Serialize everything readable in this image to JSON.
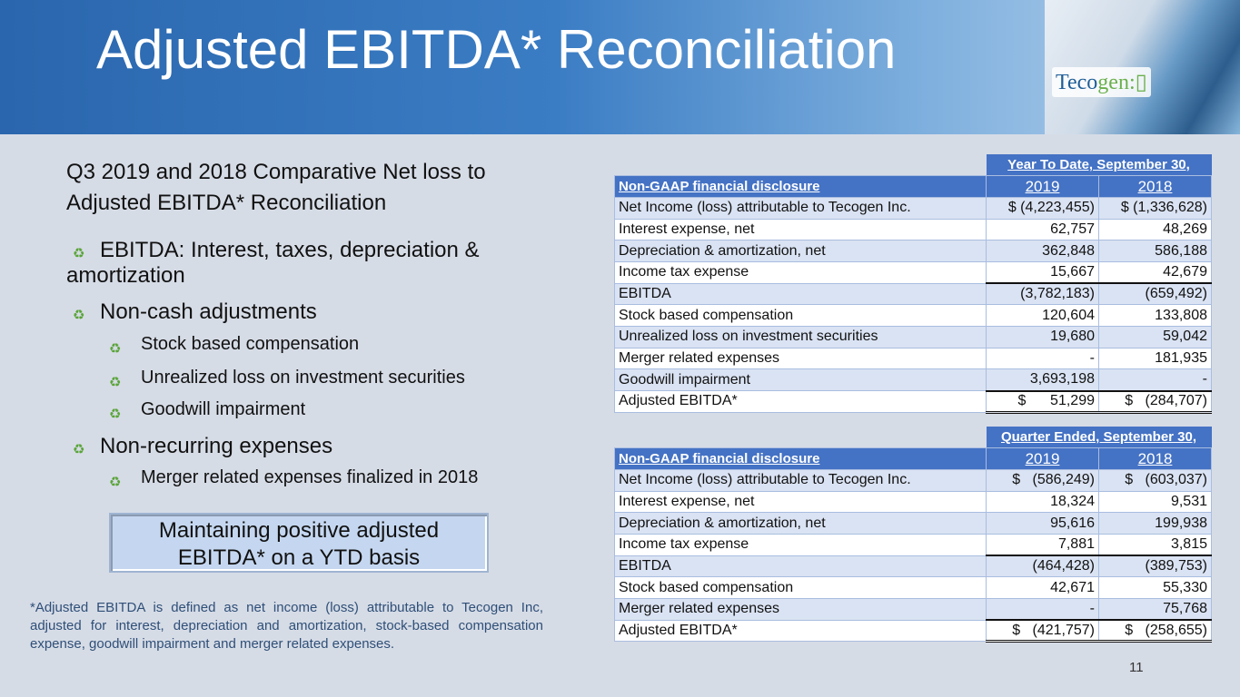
{
  "title": "Adjusted EBITDA* Reconciliation",
  "logo": {
    "text_a": "Teco",
    "text_b": "gen",
    "brand_color": "#1f5e97",
    "accent": "#6ab04c"
  },
  "left": {
    "heading_1": "Q3 2019 and 2018 Comparative Net loss to",
    "heading_2": "Adjusted EBITDA* Reconciliation",
    "bullets": [
      {
        "level": 1,
        "line1": "EBITDA: Interest, taxes, depreciation &",
        "line2": "amortization"
      },
      {
        "level": 1,
        "line1": "Non-cash adjustments"
      },
      {
        "level": 2,
        "line1": "Stock based compensation"
      },
      {
        "level": 2,
        "line1": "Unrealized loss on investment securities"
      },
      {
        "level": 2,
        "line1": "Goodwill impairment"
      },
      {
        "level": 1,
        "line1": "Non-recurring expenses"
      },
      {
        "level": 2,
        "line1": "Merger related expenses finalized in 2018"
      }
    ],
    "bullet_icon": "leaf-plug-icon",
    "callout_1": "Maintaining positive adjusted",
    "callout_2": "EBITDA* on a YTD basis",
    "footnote": "*Adjusted EBITDA is defined as net income (loss) attributable to Tecogen Inc, adjusted for interest, depreciation and amortization, stock-based compensation expense, goodwill impairment and merger related expenses."
  },
  "tables": [
    {
      "period": "Year To Date, September 30,",
      "label_header": "Non-GAAP financial disclosure",
      "years": [
        "2019",
        "2018"
      ],
      "rows": [
        [
          "Net Income (loss) attributable to Tecogen Inc.",
          "$ (4,223,455)",
          "$ (1,336,628)"
        ],
        [
          "Interest expense, net",
          "62,757",
          "48,269"
        ],
        [
          "Depreciation & amortization, net",
          "362,848",
          "586,188"
        ],
        [
          "Income tax expense",
          "15,667",
          "42,679"
        ],
        [
          "EBITDA",
          "(3,782,183)",
          "(659,492)"
        ],
        [
          "Stock based compensation",
          "120,604",
          "133,808"
        ],
        [
          "Unrealized loss on investment securities",
          "19,680",
          "59,042"
        ],
        [
          "Merger related expenses",
          "-",
          "181,935"
        ],
        [
          "Goodwill impairment",
          "3,693,198",
          "-"
        ],
        [
          "Adjusted EBITDA*",
          "$      51,299",
          "$   (284,707)"
        ]
      ],
      "shade": [
        "s",
        "w",
        "s",
        "w",
        "s",
        "w",
        "s",
        "w",
        "s",
        "w"
      ],
      "subtotal_before": [
        3,
        8
      ]
    },
    {
      "period": "Quarter Ended, September 30,",
      "label_header": "Non-GAAP financial disclosure",
      "years": [
        "2019",
        "2018"
      ],
      "rows": [
        [
          "Net Income (loss) attributable to Tecogen Inc.",
          "$   (586,249)",
          "$   (603,037)"
        ],
        [
          "Interest expense, net",
          "18,324",
          "9,531"
        ],
        [
          "Depreciation & amortization, net",
          "95,616",
          "199,938"
        ],
        [
          "Income tax expense",
          "7,881",
          "3,815"
        ],
        [
          "EBITDA",
          "(464,428)",
          "(389,753)"
        ],
        [
          "Stock based compensation",
          "42,671",
          "55,330"
        ],
        [
          "Merger related expenses",
          "-",
          "75,768"
        ],
        [
          "Adjusted EBITDA*",
          "$   (421,757)",
          "$   (258,655)"
        ]
      ],
      "shade": [
        "s",
        "w",
        "s",
        "w",
        "s",
        "w",
        "s",
        "w"
      ],
      "subtotal_before": [
        3,
        6
      ]
    }
  ],
  "page_number": "11"
}
